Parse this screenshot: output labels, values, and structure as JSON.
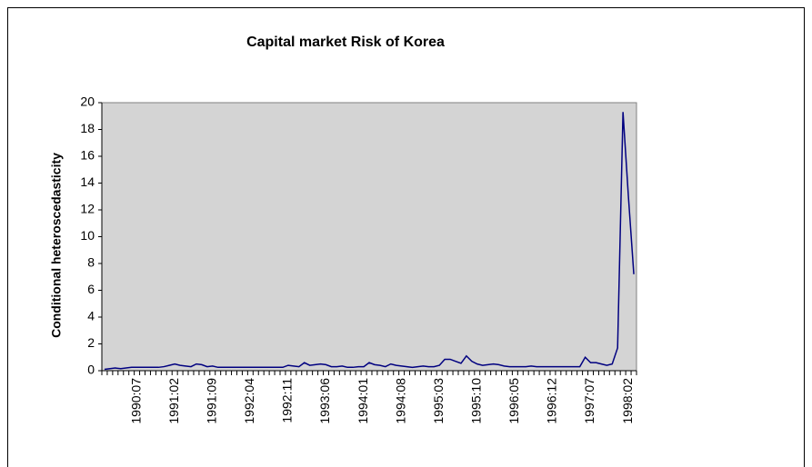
{
  "chart_data": {
    "type": "line",
    "title": "Capital market Risk of Korea",
    "y_label": "Conditional heteroscedasticity",
    "categories": [
      null,
      null,
      null,
      null,
      null,
      null,
      "1990:07",
      null,
      null,
      null,
      null,
      null,
      null,
      "1991:02",
      null,
      null,
      null,
      null,
      null,
      null,
      "1991:09",
      null,
      null,
      null,
      null,
      null,
      null,
      "1992:04",
      null,
      null,
      null,
      null,
      null,
      null,
      "1992:11",
      null,
      null,
      null,
      null,
      null,
      null,
      "1993:06",
      null,
      null,
      null,
      null,
      null,
      null,
      "1994:01",
      null,
      null,
      null,
      null,
      null,
      null,
      "1994:08",
      null,
      null,
      null,
      null,
      null,
      null,
      "1995:03",
      null,
      null,
      null,
      null,
      null,
      null,
      "1995:10",
      null,
      null,
      null,
      null,
      null,
      null,
      "1996:05",
      null,
      null,
      null,
      null,
      null,
      null,
      "1996:12",
      null,
      null,
      null,
      null,
      null,
      null,
      "1997:07",
      null,
      null,
      null,
      null,
      null,
      null,
      "1998:02",
      null
    ],
    "values": [
      0.1,
      0.15,
      0.2,
      0.15,
      0.2,
      0.25,
      0.25,
      0.25,
      0.25,
      0.25,
      0.25,
      0.3,
      0.4,
      0.5,
      0.4,
      0.35,
      0.3,
      0.5,
      0.45,
      0.3,
      0.35,
      0.25,
      0.25,
      0.25,
      0.25,
      0.25,
      0.25,
      0.25,
      0.25,
      0.25,
      0.25,
      0.25,
      0.25,
      0.25,
      0.4,
      0.35,
      0.3,
      0.6,
      0.4,
      0.45,
      0.5,
      0.45,
      0.3,
      0.3,
      0.35,
      0.25,
      0.25,
      0.3,
      0.3,
      0.6,
      0.45,
      0.4,
      0.3,
      0.5,
      0.4,
      0.35,
      0.3,
      0.25,
      0.3,
      0.35,
      0.3,
      0.3,
      0.4,
      0.85,
      0.85,
      0.7,
      0.55,
      1.1,
      0.7,
      0.5,
      0.4,
      0.45,
      0.5,
      0.45,
      0.35,
      0.3,
      0.3,
      0.3,
      0.3,
      0.35,
      0.3,
      0.3,
      0.3,
      0.3,
      0.3,
      0.3,
      0.3,
      0.3,
      0.3,
      1.0,
      0.6,
      0.6,
      0.5,
      0.4,
      0.5,
      1.7,
      19.3,
      13,
      7.2
    ],
    "color": "#000080",
    "plot_background": "#d4d4d4",
    "ylim": [
      0,
      20
    ],
    "yticks": [
      0,
      2,
      4,
      6,
      8,
      10,
      12,
      14,
      16,
      18,
      20
    ],
    "grid": false
  }
}
